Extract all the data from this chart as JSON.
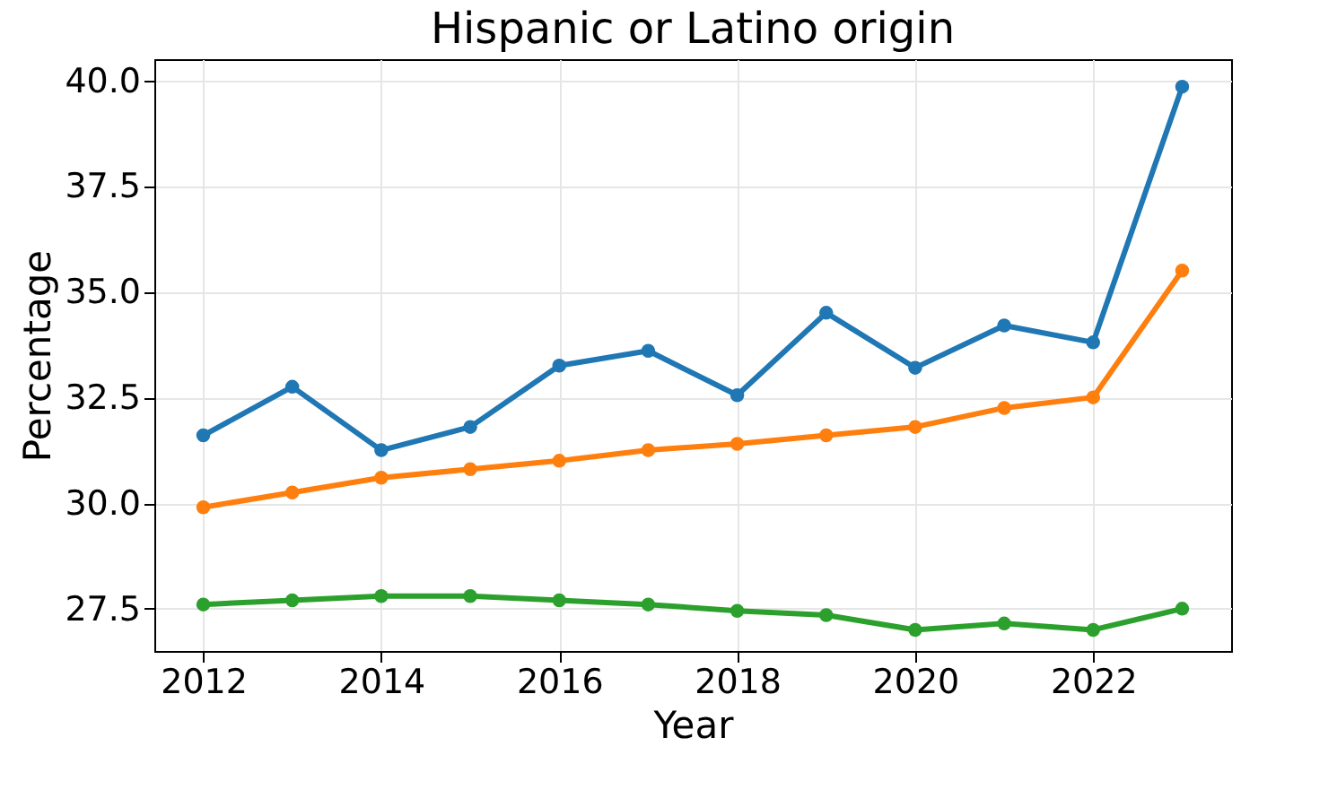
{
  "chart_data": {
    "type": "line",
    "title": "Hispanic or Latino origin",
    "xlabel": "Year",
    "ylabel": "Percentage",
    "x": [
      2012,
      2013,
      2014,
      2015,
      2016,
      2017,
      2018,
      2019,
      2020,
      2021,
      2022,
      2023
    ],
    "series": [
      {
        "color": "#1f77b4",
        "values": [
          31.6,
          32.75,
          31.25,
          31.8,
          33.25,
          33.6,
          32.55,
          34.5,
          33.2,
          34.2,
          33.8,
          39.85
        ]
      },
      {
        "color": "#ff7f0e",
        "values": [
          29.9,
          30.25,
          30.6,
          30.8,
          31.0,
          31.25,
          31.4,
          31.6,
          31.8,
          32.25,
          32.5,
          35.5
        ]
      },
      {
        "color": "#2ca02c",
        "values": [
          27.6,
          27.7,
          27.8,
          27.8,
          27.7,
          27.6,
          27.45,
          27.35,
          27.0,
          27.15,
          27.0,
          27.5
        ]
      }
    ],
    "xlim": [
      2011.45,
      2023.55
    ],
    "xticks": [
      2012,
      2014,
      2016,
      2018,
      2020,
      2022
    ],
    "ylim": [
      26.5,
      40.5
    ],
    "yticks": [
      27.5,
      {
        "value": 30,
        "label": "30.0"
      },
      32.5,
      {
        "value": 35,
        "label": "35.0"
      },
      37.5,
      {
        "value": 40,
        "label": "40.0"
      }
    ],
    "grid": true,
    "marker": "circle",
    "line_style": "solid"
  }
}
